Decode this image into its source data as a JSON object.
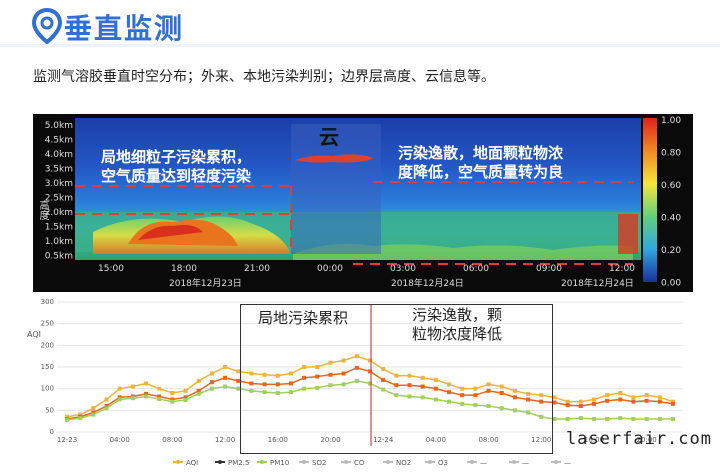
{
  "header": {
    "title": "垂直监测",
    "icon": "location-pin-icon"
  },
  "description": "监测气溶胶垂直时空分布；外来、本地污染判别；边界层高度、云信息等。",
  "lidar": {
    "y_axis_label": "高度",
    "y_ticks": [
      "5.0km",
      "4.5km",
      "4.0km",
      "3.5km",
      "3.0km",
      "2.5km",
      "2.0km",
      "1.5km",
      "1.0km",
      "0.5km"
    ],
    "x_ticks": [
      "15:00",
      "18:00",
      "21:00",
      "00:00",
      "03:00",
      "06:00",
      "09:00",
      "12:00"
    ],
    "dates": [
      "2018年12月23日",
      "2018年12月24日",
      "2018年12月24日"
    ],
    "colorbar_ticks": [
      "1.00",
      "0.80",
      "0.60",
      "0.40",
      "0.20",
      "0.00"
    ],
    "annot_left": [
      "局地细粒子污染累积，",
      "空气质量达到轻度污染"
    ],
    "annot_cloud": "云",
    "annot_right": [
      "污染逸散，地面颗粒物浓",
      "度降低，空气质量转为良"
    ]
  },
  "aqi_chart": {
    "y_axis_label": "AQI",
    "y_ticks": [
      "300",
      "250",
      "200",
      "150",
      "100",
      "50",
      "0"
    ],
    "x_ticks": [
      "12-23",
      "04:00",
      "08:00",
      "12:00",
      "16:00",
      "20:00",
      "12-24",
      "04:00",
      "08:00",
      "12:00",
      "16:00",
      "20:00"
    ],
    "box_left_label": "局地污染累积",
    "box_right_label": [
      "污染逸散，颗",
      "粒物浓度降低"
    ],
    "legend": [
      "AQI",
      "PM2.5",
      "PM10",
      "SO2",
      "CO",
      "NO2",
      "O3",
      "—",
      "—",
      "—"
    ],
    "colors": {
      "aqi": "#f0b23a",
      "pm25": "#e8641c",
      "pm10": "#a0cf5a",
      "marker_line": "#e04040"
    }
  },
  "watermark": "laserfair.com",
  "chart_data": {
    "type": "line",
    "title": "",
    "ylabel": "AQI",
    "ylim": [
      0,
      300
    ],
    "x": [
      "12-23 00:00",
      "01",
      "02",
      "03",
      "04:00",
      "05",
      "06",
      "07",
      "08:00",
      "09",
      "10",
      "11",
      "12:00",
      "13",
      "14",
      "15",
      "16:00",
      "17",
      "18",
      "19",
      "20:00",
      "21",
      "22",
      "23",
      "12-24 00:00",
      "01",
      "02",
      "03",
      "04:00",
      "05",
      "06",
      "07",
      "08:00",
      "09",
      "10",
      "11",
      "12:00",
      "13",
      "14",
      "15",
      "16:00",
      "17",
      "18",
      "19",
      "20:00",
      "21",
      "22"
    ],
    "series": [
      {
        "name": "AQI",
        "values": [
          35,
          40,
          55,
          75,
          100,
          105,
          112,
          100,
          90,
          95,
          118,
          135,
          150,
          140,
          135,
          132,
          130,
          135,
          150,
          150,
          160,
          165,
          175,
          165,
          145,
          130,
          130,
          125,
          120,
          110,
          100,
          100,
          110,
          105,
          95,
          88,
          85,
          80,
          70,
          70,
          75,
          85,
          90,
          80,
          85,
          80,
          70
        ]
      },
      {
        "name": "PM2.5",
        "values": [
          30,
          35,
          45,
          60,
          80,
          82,
          88,
          82,
          75,
          80,
          95,
          115,
          125,
          118,
          112,
          110,
          110,
          112,
          125,
          128,
          132,
          135,
          148,
          140,
          120,
          108,
          108,
          105,
          100,
          92,
          85,
          85,
          95,
          90,
          80,
          75,
          70,
          68,
          62,
          60,
          65,
          72,
          75,
          70,
          72,
          70,
          65
        ]
      },
      {
        "name": "PM10",
        "values": [
          28,
          32,
          40,
          55,
          75,
          78,
          82,
          76,
          70,
          74,
          88,
          100,
          105,
          100,
          95,
          92,
          90,
          92,
          100,
          102,
          108,
          110,
          118,
          112,
          98,
          85,
          82,
          80,
          75,
          70,
          65,
          62,
          60,
          55,
          50,
          45,
          35,
          30,
          30,
          32,
          30,
          30,
          32,
          30,
          30,
          30,
          30
        ]
      }
    ]
  }
}
